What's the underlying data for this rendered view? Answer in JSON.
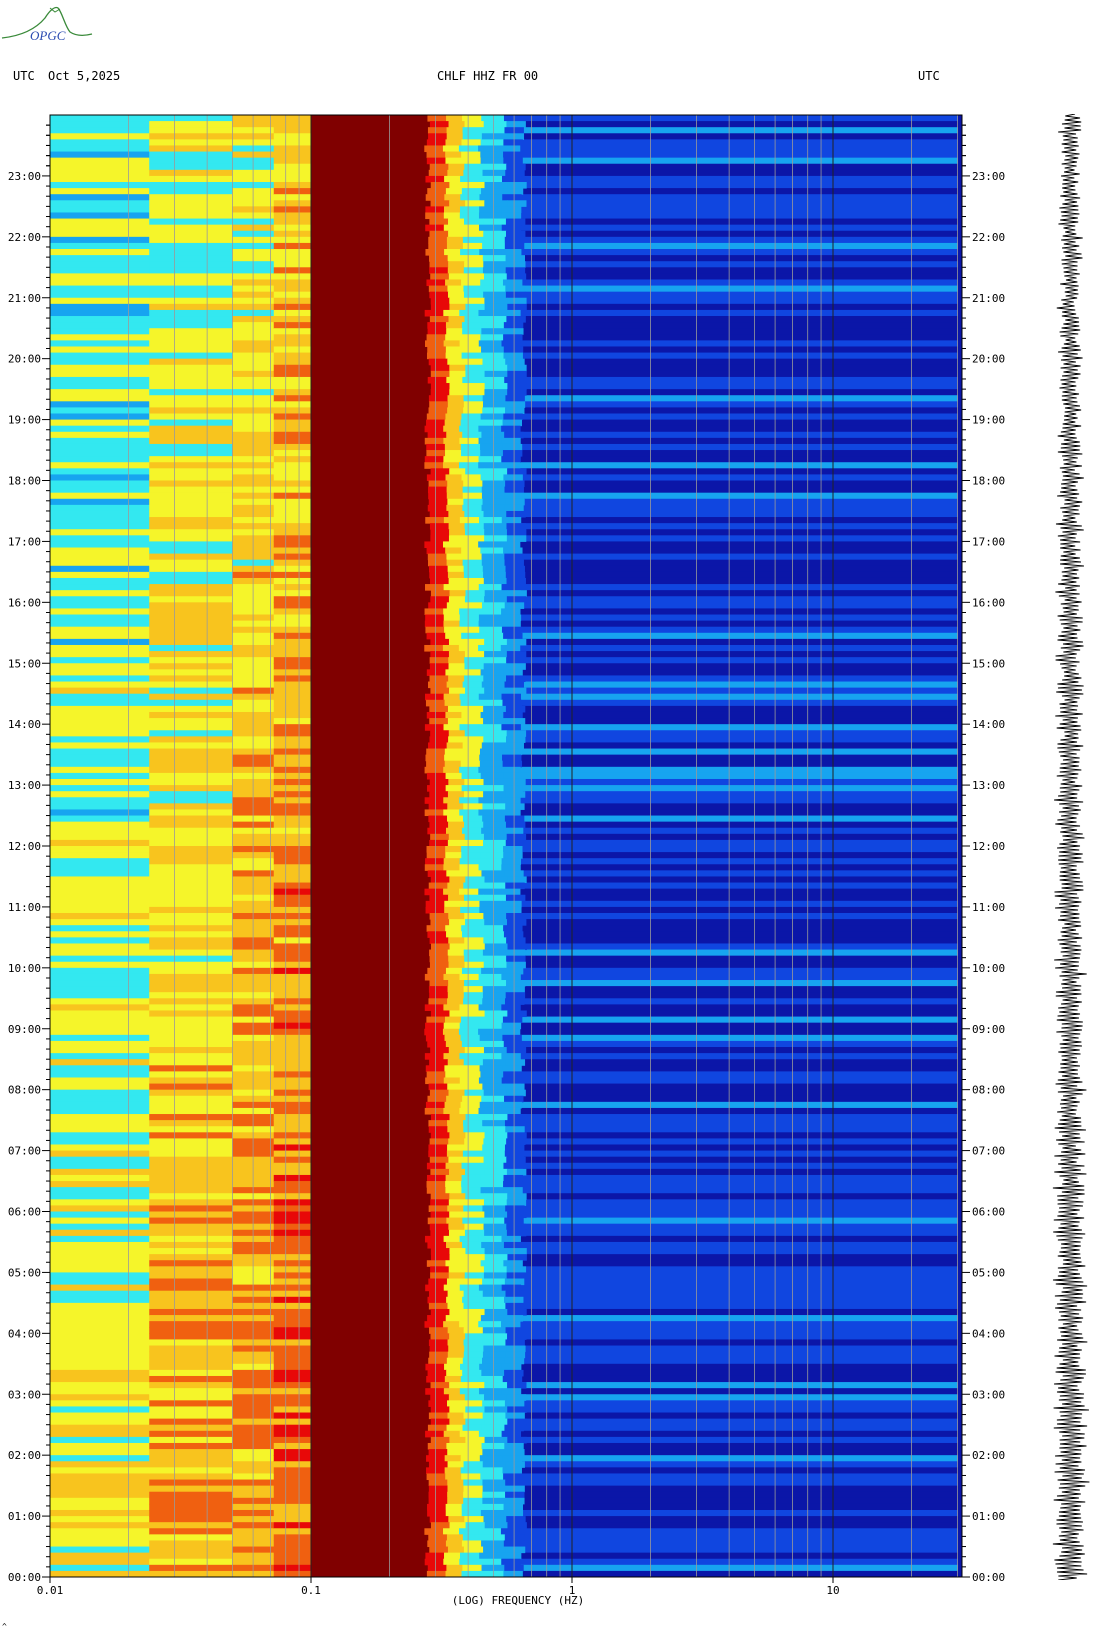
{
  "logo": {
    "text": "OPGC"
  },
  "header": {
    "left_utc": "UTC",
    "date": "Oct 5,2025",
    "station": "CHLF HHZ FR 00",
    "right_utc": "UTC"
  },
  "chart_data": {
    "type": "heatmap",
    "title": "CHLF HHZ FR 00",
    "date": "Oct 5,2025",
    "xlabel": "(LOG) FREQUENCY (HZ)",
    "x_scale": "log",
    "xlim": [
      0.01,
      30
    ],
    "x_ticks": [
      {
        "value": 0.01,
        "label": "0.01"
      },
      {
        "value": 0.1,
        "label": "0.1"
      },
      {
        "value": 1,
        "label": "1"
      },
      {
        "value": 10,
        "label": "10"
      }
    ],
    "y_axis_label_left": "UTC",
    "y_axis_label_right": "UTC",
    "ylim_hours": [
      0,
      24
    ],
    "y_ticks": [
      "00:00",
      "01:00",
      "02:00",
      "03:00",
      "04:00",
      "05:00",
      "06:00",
      "07:00",
      "08:00",
      "09:00",
      "10:00",
      "11:00",
      "12:00",
      "13:00",
      "14:00",
      "15:00",
      "16:00",
      "17:00",
      "18:00",
      "19:00",
      "20:00",
      "21:00",
      "22:00",
      "23:00"
    ],
    "colormap": [
      "#0b16a8",
      "#1046e0",
      "#17a4f0",
      "#33e8f0",
      "#f5f52a",
      "#f8c41e",
      "#f06010",
      "#e80808",
      "#800000"
    ],
    "spectral_bands": [
      {
        "f_min": 0.01,
        "f_max": 0.024,
        "level_start": 0.52,
        "level_end": 0.38
      },
      {
        "f_min": 0.024,
        "f_max": 0.05,
        "level_start": 0.66,
        "level_end": 0.45
      },
      {
        "f_min": 0.05,
        "f_max": 0.072,
        "level_start": 0.7,
        "level_end": 0.5
      },
      {
        "f_min": 0.072,
        "f_max": 0.1,
        "level_start": 0.76,
        "level_end": 0.6
      },
      {
        "f_min": 0.1,
        "f_max": 0.3,
        "level_start": 1.0,
        "level_end": 1.0
      },
      {
        "f_min": 0.3,
        "f_max": 0.6,
        "level_start": 0.55,
        "level_end": 0.45
      },
      {
        "f_min": 0.6,
        "f_max": 30,
        "level_start": 0.08,
        "level_end": 0.08
      }
    ],
    "grid": true,
    "seismogram_trace": true
  }
}
